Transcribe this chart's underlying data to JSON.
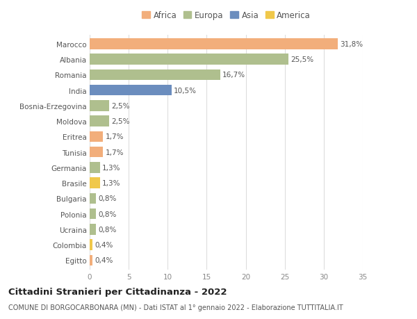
{
  "categories": [
    "Marocco",
    "Albania",
    "Romania",
    "India",
    "Bosnia-Erzegovina",
    "Moldova",
    "Eritrea",
    "Tunisia",
    "Germania",
    "Brasile",
    "Bulgaria",
    "Polonia",
    "Ucraina",
    "Colombia",
    "Egitto"
  ],
  "values": [
    31.8,
    25.5,
    16.7,
    10.5,
    2.5,
    2.5,
    1.7,
    1.7,
    1.3,
    1.3,
    0.8,
    0.8,
    0.8,
    0.4,
    0.4
  ],
  "labels": [
    "31,8%",
    "25,5%",
    "16,7%",
    "10,5%",
    "2,5%",
    "2,5%",
    "1,7%",
    "1,7%",
    "1,3%",
    "1,3%",
    "0,8%",
    "0,8%",
    "0,8%",
    "0,4%",
    "0,4%"
  ],
  "continents": [
    "Africa",
    "Europa",
    "Europa",
    "Asia",
    "Europa",
    "Europa",
    "Africa",
    "Africa",
    "Europa",
    "America",
    "Europa",
    "Europa",
    "Europa",
    "America",
    "Africa"
  ],
  "continent_colors": {
    "Africa": "#F2AE7B",
    "Europa": "#AFBF8E",
    "Asia": "#6B8DBE",
    "America": "#F0C84A"
  },
  "legend_order": [
    "Africa",
    "Europa",
    "Asia",
    "America"
  ],
  "title_bold": "Cittadini Stranieri per Cittadinanza - 2022",
  "subtitle": "COMUNE DI BORGOCARBONARA (MN) - Dati ISTAT al 1° gennaio 2022 - Elaborazione TUTTITALIA.IT",
  "xlim": [
    0,
    35
  ],
  "xticks": [
    0,
    5,
    10,
    15,
    20,
    25,
    30,
    35
  ],
  "background_color": "#ffffff",
  "grid_color": "#dddddd",
  "bar_height": 0.7,
  "label_fontsize": 7.5,
  "tick_fontsize": 7.5,
  "title_fontsize": 9.5,
  "subtitle_fontsize": 7.0,
  "legend_fontsize": 8.5
}
